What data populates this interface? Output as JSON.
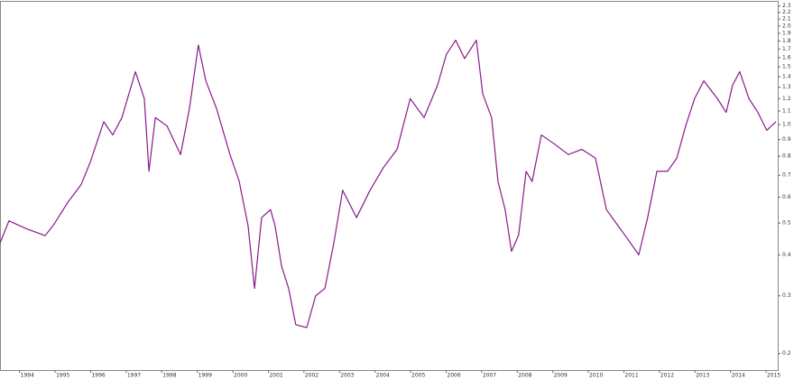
{
  "chart_data": {
    "type": "line",
    "x": [
      1993.45,
      1993.7,
      1994.21,
      1994.72,
      1994.97,
      1995.35,
      1995.73,
      1995.99,
      1996.37,
      1996.62,
      1996.88,
      1997.26,
      1997.51,
      1997.64,
      1997.82,
      1998.15,
      1998.53,
      1998.78,
      1999.03,
      1999.24,
      1999.54,
      1999.92,
      2000.18,
      2000.43,
      2000.61,
      2000.81,
      2001.06,
      2001.19,
      2001.37,
      2001.57,
      2001.77,
      2002.08,
      2002.33,
      2002.59,
      2002.84,
      2003.09,
      2003.48,
      2003.86,
      2004.24,
      2004.62,
      2004.99,
      2005.38,
      2005.76,
      2006.01,
      2006.27,
      2006.52,
      2006.85,
      2007.03,
      2007.28,
      2007.46,
      2007.66,
      2007.84,
      2008.04,
      2008.25,
      2008.42,
      2008.68,
      2009.06,
      2009.44,
      2009.82,
      2010.2,
      2010.51,
      2010.84,
      2011.09,
      2011.42,
      2011.67,
      2011.93,
      2012.23,
      2012.49,
      2012.74,
      2012.99,
      2013.25,
      2013.63,
      2013.88,
      2014.06,
      2014.26,
      2014.52,
      2014.77,
      2015.02,
      2015.15,
      2015.28
    ],
    "values": [
      0.434,
      0.508,
      0.48,
      0.458,
      0.496,
      0.577,
      0.655,
      0.768,
      1.02,
      0.93,
      1.05,
      1.45,
      1.2,
      0.72,
      1.05,
      0.99,
      0.81,
      1.12,
      1.75,
      1.36,
      1.12,
      0.81,
      0.67,
      0.49,
      0.316,
      0.52,
      0.55,
      0.49,
      0.37,
      0.316,
      0.245,
      0.24,
      0.3,
      0.316,
      0.434,
      0.63,
      0.52,
      0.63,
      0.74,
      0.84,
      1.2,
      1.05,
      1.32,
      1.64,
      1.81,
      1.59,
      1.81,
      1.24,
      1.05,
      0.67,
      0.55,
      0.41,
      0.46,
      0.72,
      0.67,
      0.93,
      0.87,
      0.81,
      0.84,
      0.79,
      0.55,
      0.49,
      0.45,
      0.4,
      0.52,
      0.72,
      0.72,
      0.79,
      0.99,
      1.2,
      1.36,
      1.2,
      1.09,
      1.32,
      1.45,
      1.2,
      1.09,
      0.96,
      0.99,
      1.02
    ],
    "color": "#8a1a8a",
    "log_scale": true,
    "xlim": [
      1993.45,
      2015.33
    ],
    "xticks": [
      1994,
      1995,
      1996,
      1997,
      1998,
      1999,
      2000,
      2001,
      2002,
      2003,
      2004,
      2005,
      2006,
      2007,
      2008,
      2009,
      2010,
      2011,
      2012,
      2013,
      2014,
      2015
    ],
    "ylim": [
      0.178,
      2.37
    ],
    "yticks": [
      0.2,
      0.3,
      0.4,
      0.5,
      0.6,
      0.7,
      0.8,
      0.9,
      {
        "value": 1,
        "label": "1.0"
      },
      1.1,
      1.2,
      1.3,
      1.4,
      1.5,
      1.6,
      1.7,
      1.8,
      1.9,
      {
        "value": 2,
        "label": "2.0"
      },
      2.1,
      2.2,
      2.3
    ]
  }
}
